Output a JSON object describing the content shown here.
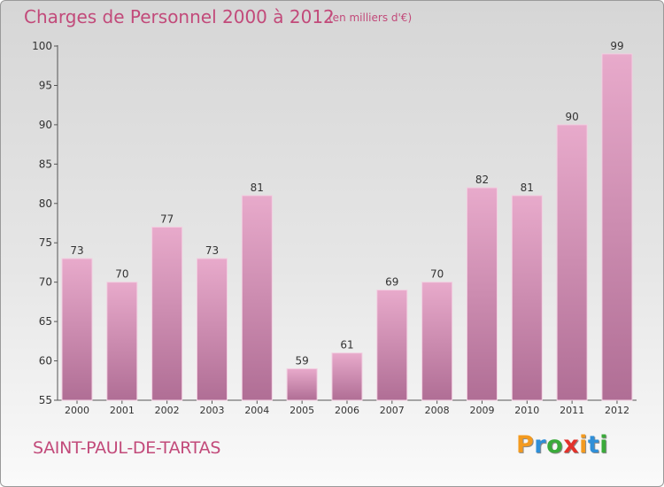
{
  "chart_data": {
    "type": "bar",
    "title": "Charges de Personnel 2000 à 2012",
    "subtitle": "(en milliers d'€)",
    "categories": [
      "2000",
      "2001",
      "2002",
      "2003",
      "2004",
      "2005",
      "2006",
      "2007",
      "2008",
      "2009",
      "2010",
      "2011",
      "2012"
    ],
    "values": [
      73,
      70,
      77,
      73,
      81,
      59,
      61,
      69,
      70,
      82,
      81,
      90,
      99
    ],
    "ylim": [
      55,
      100
    ],
    "yticks": [
      55,
      60,
      65,
      70,
      75,
      80,
      85,
      90,
      95,
      100
    ],
    "grid": false,
    "colors": {
      "bar_light": "#e8aacb",
      "bar_dark": "#b06e95",
      "text": "#c24a7a"
    }
  },
  "footer": {
    "commune": "SAINT-PAUL-DE-TARTAS"
  },
  "logo": {
    "text": "Proxiti",
    "letters": [
      {
        "ch": "P",
        "color": "#f39a1f"
      },
      {
        "ch": "r",
        "color": "#2f8fd8"
      },
      {
        "ch": "o",
        "color": "#3aaa3a"
      },
      {
        "ch": "x",
        "color": "#e2322b"
      },
      {
        "ch": "i",
        "color": "#f39a1f"
      },
      {
        "ch": "t",
        "color": "#2f8fd8"
      },
      {
        "ch": "i",
        "color": "#3aaa3a"
      }
    ]
  }
}
